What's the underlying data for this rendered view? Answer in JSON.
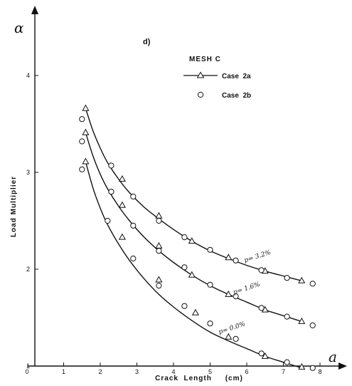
{
  "chart_data": {
    "type": "line",
    "panel_label": "d)",
    "legend_title": "MESH C",
    "xlabel": "Crack  Length     (cm)",
    "ylabel": "Load  Multiplier",
    "x_symbol": "a",
    "y_symbol": "α",
    "xlim": [
      0,
      8.5
    ],
    "ylim": [
      1,
      4.8
    ],
    "xticks": [
      0,
      1,
      2,
      3,
      4,
      5,
      6,
      7,
      8
    ],
    "yticks": [
      1,
      2,
      3,
      4
    ],
    "legend": [
      {
        "key": "case2a",
        "text": "Case  2a",
        "marker": "triangle-line"
      },
      {
        "key": "case2b",
        "text": "Case  2b",
        "marker": "circle"
      }
    ],
    "curves": [
      {
        "label": "p= 3.2%",
        "label_at": [
          5.95,
          2.07
        ],
        "line": [
          [
            1.6,
            3.66
          ],
          [
            1.8,
            3.43
          ],
          [
            2.0,
            3.25
          ],
          [
            2.2,
            3.1
          ],
          [
            2.5,
            2.93
          ],
          [
            2.8,
            2.79
          ],
          [
            3.2,
            2.64
          ],
          [
            3.6,
            2.52
          ],
          [
            4.0,
            2.41
          ],
          [
            4.5,
            2.29
          ],
          [
            5.0,
            2.19
          ],
          [
            5.5,
            2.11
          ],
          [
            6.0,
            2.04
          ],
          [
            6.5,
            1.98
          ],
          [
            7.0,
            1.93
          ],
          [
            7.5,
            1.88
          ]
        ],
        "case2a": [
          [
            1.6,
            3.66
          ],
          [
            2.6,
            2.93
          ],
          [
            3.6,
            2.55
          ],
          [
            4.5,
            2.29
          ],
          [
            5.5,
            2.12
          ],
          [
            6.5,
            1.98
          ],
          [
            7.5,
            1.88
          ]
        ],
        "case2b": [
          [
            1.5,
            3.55
          ],
          [
            2.3,
            3.07
          ],
          [
            2.9,
            2.75
          ],
          [
            3.6,
            2.5
          ],
          [
            4.3,
            2.33
          ],
          [
            5.0,
            2.2
          ],
          [
            5.7,
            2.09
          ],
          [
            6.4,
            1.99
          ],
          [
            7.1,
            1.91
          ],
          [
            7.8,
            1.85
          ]
        ]
      },
      {
        "label": "p= 1.6%",
        "label_at": [
          5.65,
          1.74
        ],
        "line": [
          [
            1.6,
            3.41
          ],
          [
            1.8,
            3.17
          ],
          [
            2.0,
            2.98
          ],
          [
            2.2,
            2.83
          ],
          [
            2.5,
            2.65
          ],
          [
            2.8,
            2.5
          ],
          [
            3.2,
            2.33
          ],
          [
            3.6,
            2.19
          ],
          [
            4.0,
            2.07
          ],
          [
            4.5,
            1.94
          ],
          [
            5.0,
            1.83
          ],
          [
            5.5,
            1.74
          ],
          [
            6.0,
            1.66
          ],
          [
            6.5,
            1.58
          ],
          [
            7.0,
            1.52
          ],
          [
            7.5,
            1.46
          ]
        ],
        "case2a": [
          [
            1.6,
            3.41
          ],
          [
            2.6,
            2.66
          ],
          [
            3.6,
            2.24
          ],
          [
            4.5,
            1.94
          ],
          [
            5.5,
            1.74
          ],
          [
            6.5,
            1.58
          ],
          [
            7.5,
            1.46
          ]
        ],
        "case2b": [
          [
            1.5,
            3.32
          ],
          [
            2.3,
            2.8
          ],
          [
            2.9,
            2.45
          ],
          [
            3.6,
            2.19
          ],
          [
            4.3,
            2.02
          ],
          [
            5.0,
            1.84
          ],
          [
            5.7,
            1.72
          ],
          [
            6.4,
            1.6
          ],
          [
            7.1,
            1.51
          ],
          [
            7.8,
            1.42
          ]
        ]
      },
      {
        "label": "p= 0.0%",
        "label_at": [
          5.25,
          1.33
        ],
        "line": [
          [
            1.6,
            3.11
          ],
          [
            1.8,
            2.84
          ],
          [
            2.0,
            2.63
          ],
          [
            2.2,
            2.46
          ],
          [
            2.5,
            2.26
          ],
          [
            2.8,
            2.09
          ],
          [
            3.2,
            1.9
          ],
          [
            3.6,
            1.74
          ],
          [
            4.0,
            1.61
          ],
          [
            4.5,
            1.47
          ],
          [
            5.0,
            1.35
          ],
          [
            5.5,
            1.26
          ],
          [
            6.0,
            1.18
          ],
          [
            6.5,
            1.1
          ],
          [
            7.0,
            1.04
          ],
          [
            7.5,
            0.98
          ]
        ],
        "case2a": [
          [
            1.6,
            3.11
          ],
          [
            2.6,
            2.33
          ],
          [
            3.6,
            1.89
          ],
          [
            4.6,
            1.55
          ],
          [
            5.5,
            1.3
          ],
          [
            6.5,
            1.1
          ],
          [
            7.5,
            0.99
          ]
        ],
        "case2b": [
          [
            1.5,
            3.03
          ],
          [
            2.2,
            2.5
          ],
          [
            2.9,
            2.11
          ],
          [
            3.6,
            1.83
          ],
          [
            4.3,
            1.62
          ],
          [
            5.0,
            1.44
          ],
          [
            5.7,
            1.28
          ],
          [
            6.4,
            1.13
          ],
          [
            7.1,
            1.04
          ],
          [
            7.8,
            0.98
          ]
        ]
      }
    ]
  }
}
